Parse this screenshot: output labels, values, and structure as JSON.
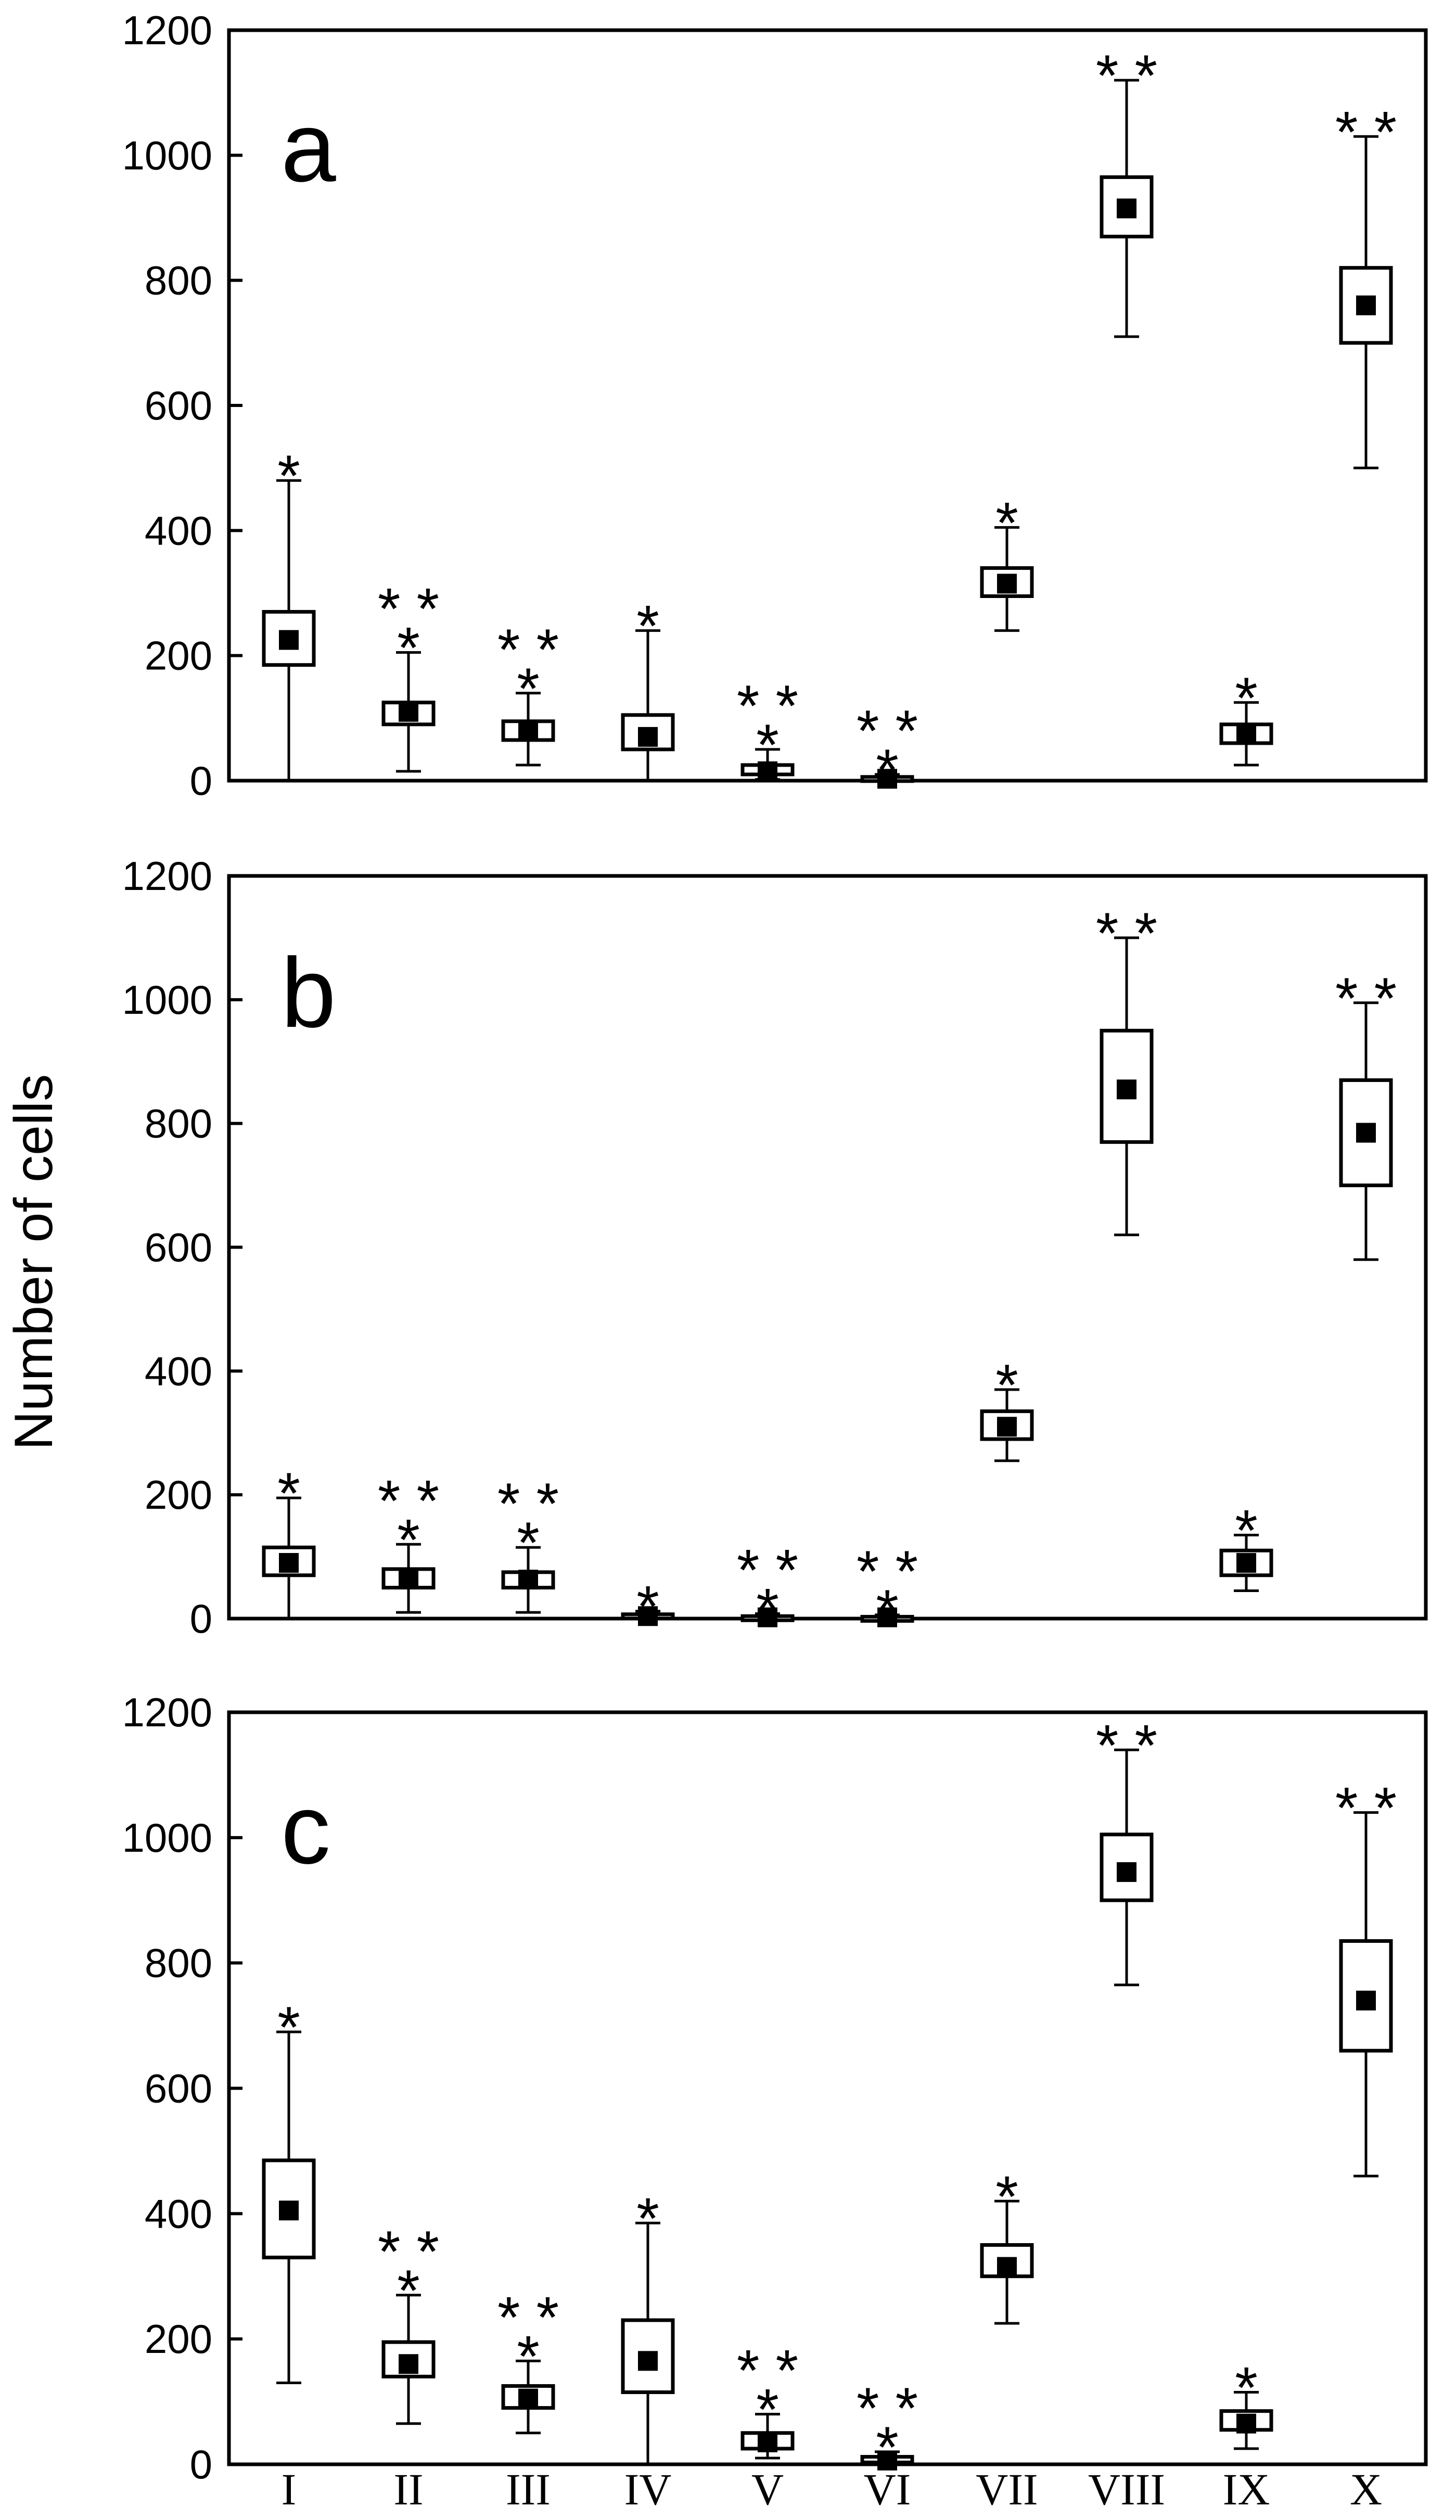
{
  "chart_data": {
    "type": "box",
    "ylabel": "Number of cells",
    "categories": [
      "I",
      "II",
      "III",
      "IV",
      "V",
      "VI",
      "VII",
      "VIII",
      "IX",
      "X"
    ],
    "ylim": [
      0,
      1200
    ],
    "yticks": [
      "0",
      "200",
      "400",
      "600",
      "800",
      "1000",
      "1200"
    ],
    "panels": [
      {
        "label": "a",
        "boxes": [
          {
            "category": "I",
            "whisker_low": 0,
            "q1": 185,
            "median": 225,
            "q3": 270,
            "whisker_high": 480,
            "significance": "*"
          },
          {
            "category": "II",
            "whisker_low": 15,
            "q1": 90,
            "median": 110,
            "q3": 125,
            "whisker_high": 205,
            "significance": "**\n*"
          },
          {
            "category": "III",
            "whisker_low": 25,
            "q1": 65,
            "median": 80,
            "q3": 95,
            "whisker_high": 140,
            "significance": "**\n*"
          },
          {
            "category": "IV",
            "whisker_low": 0,
            "q1": 50,
            "median": 70,
            "q3": 105,
            "whisker_high": 240,
            "significance": "*"
          },
          {
            "category": "V",
            "whisker_low": 2,
            "q1": 10,
            "median": 15,
            "q3": 25,
            "whisker_high": 50,
            "significance": "**\n*"
          },
          {
            "category": "VI",
            "whisker_low": 0,
            "q1": 2,
            "median": 3,
            "q3": 6,
            "whisker_high": 10,
            "significance": "**\n*"
          },
          {
            "category": "VII",
            "whisker_low": 240,
            "q1": 295,
            "median": 315,
            "q3": 340,
            "whisker_high": 405,
            "significance": "*"
          },
          {
            "category": "VIII",
            "whisker_low": 710,
            "q1": 870,
            "median": 915,
            "q3": 965,
            "whisker_high": 1120,
            "significance": "**"
          },
          {
            "category": "IX",
            "whisker_low": 25,
            "q1": 60,
            "median": 75,
            "q3": 90,
            "whisker_high": 125,
            "significance": "*"
          },
          {
            "category": "X",
            "whisker_low": 500,
            "q1": 700,
            "median": 760,
            "q3": 820,
            "whisker_high": 1030,
            "significance": "**"
          }
        ]
      },
      {
        "label": "b",
        "boxes": [
          {
            "category": "I",
            "whisker_low": 0,
            "q1": 70,
            "median": 90,
            "q3": 115,
            "whisker_high": 195,
            "significance": "*"
          },
          {
            "category": "II",
            "whisker_low": 10,
            "q1": 50,
            "median": 65,
            "q3": 80,
            "whisker_high": 120,
            "significance": "**\n*"
          },
          {
            "category": "III",
            "whisker_low": 10,
            "q1": 50,
            "median": 63,
            "q3": 75,
            "whisker_high": 115,
            "significance": "**\n*"
          },
          {
            "category": "IV",
            "whisker_low": 0,
            "q1": 2,
            "median": 4,
            "q3": 7,
            "whisker_high": 12,
            "significance": "*"
          },
          {
            "category": "V",
            "whisker_low": 0,
            "q1": 1,
            "median": 2,
            "q3": 4,
            "whisker_high": 8,
            "significance": "**\n*"
          },
          {
            "category": "VI",
            "whisker_low": 0,
            "q1": 1,
            "median": 2,
            "q3": 3,
            "whisker_high": 6,
            "significance": "**\n*"
          },
          {
            "category": "VII",
            "whisker_low": 255,
            "q1": 290,
            "median": 310,
            "q3": 335,
            "whisker_high": 370,
            "significance": "*"
          },
          {
            "category": "VIII",
            "whisker_low": 620,
            "q1": 770,
            "median": 855,
            "q3": 950,
            "whisker_high": 1100,
            "significance": "**"
          },
          {
            "category": "IX",
            "whisker_low": 45,
            "q1": 70,
            "median": 90,
            "q3": 110,
            "whisker_high": 135,
            "significance": "*"
          },
          {
            "category": "X",
            "whisker_low": 580,
            "q1": 700,
            "median": 785,
            "q3": 870,
            "whisker_high": 995,
            "significance": "**"
          }
        ]
      },
      {
        "label": "c",
        "boxes": [
          {
            "category": "I",
            "whisker_low": 130,
            "q1": 330,
            "median": 405,
            "q3": 485,
            "whisker_high": 690,
            "significance": "*"
          },
          {
            "category": "II",
            "whisker_low": 65,
            "q1": 140,
            "median": 160,
            "q3": 195,
            "whisker_high": 270,
            "significance": "**\n*"
          },
          {
            "category": "III",
            "whisker_low": 50,
            "q1": 90,
            "median": 105,
            "q3": 125,
            "whisker_high": 165,
            "significance": "**\n*"
          },
          {
            "category": "IV",
            "whisker_low": 0,
            "q1": 115,
            "median": 165,
            "q3": 230,
            "whisker_high": 385,
            "significance": "*"
          },
          {
            "category": "V",
            "whisker_low": 10,
            "q1": 25,
            "median": 35,
            "q3": 50,
            "whisker_high": 80,
            "significance": "**\n*"
          },
          {
            "category": "VI",
            "whisker_low": 0,
            "q1": 3,
            "median": 6,
            "q3": 12,
            "whisker_high": 20,
            "significance": "**\n*"
          },
          {
            "category": "VII",
            "whisker_low": 225,
            "q1": 300,
            "median": 315,
            "q3": 350,
            "whisker_high": 420,
            "significance": "*"
          },
          {
            "category": "VIII",
            "whisker_low": 765,
            "q1": 900,
            "median": 945,
            "q3": 1005,
            "whisker_high": 1140,
            "significance": "**"
          },
          {
            "category": "IX",
            "whisker_low": 25,
            "q1": 55,
            "median": 65,
            "q3": 85,
            "whisker_high": 115,
            "significance": "*"
          },
          {
            "category": "X",
            "whisker_low": 460,
            "q1": 660,
            "median": 740,
            "q3": 835,
            "whisker_high": 1040,
            "significance": "**"
          }
        ]
      }
    ]
  }
}
